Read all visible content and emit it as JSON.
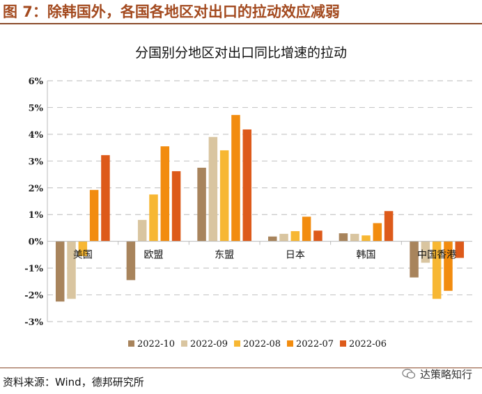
{
  "figure_title": "图 7：除韩国外，各国各地区对出口的拉动效应减弱",
  "source_note": "资料来源：Wind，德邦研究所",
  "watermark": "达策略知行",
  "colors": {
    "title": "#a34a1f",
    "rule": "#8a4a2a",
    "series": [
      "#a8845c",
      "#d9c5a0",
      "#f7b733",
      "#f28c0f",
      "#dd5a1a"
    ]
  },
  "chart_data": {
    "type": "bar",
    "title": "分国别分地区对出口同比增速的拉动",
    "categories": [
      "美国",
      "欧盟",
      "东盟",
      "日本",
      "韩国",
      "中国香港"
    ],
    "series": [
      {
        "name": "2022-10",
        "values": [
          -2.25,
          -1.45,
          2.75,
          0.18,
          0.3,
          -1.35
        ]
      },
      {
        "name": "2022-09",
        "values": [
          -2.15,
          0.8,
          3.9,
          0.28,
          0.28,
          -0.8
        ]
      },
      {
        "name": "2022-08",
        "values": [
          -0.55,
          1.75,
          3.4,
          0.38,
          0.22,
          -2.15
        ]
      },
      {
        "name": "2022-07",
        "values": [
          1.92,
          3.55,
          4.72,
          0.92,
          0.68,
          -1.85
        ]
      },
      {
        "name": "2022-06",
        "values": [
          3.22,
          2.62,
          4.18,
          0.4,
          1.13,
          -0.62
        ]
      }
    ],
    "ylim": [
      -3,
      6
    ],
    "yticks": [
      -3,
      -2,
      -1,
      0,
      1,
      2,
      3,
      4,
      5,
      6
    ],
    "ytick_labels": [
      "-3%",
      "-2%",
      "-1%",
      "0%",
      "1%",
      "2%",
      "3%",
      "4%",
      "5%",
      "6%"
    ],
    "grid": true,
    "legend_position": "bottom"
  }
}
